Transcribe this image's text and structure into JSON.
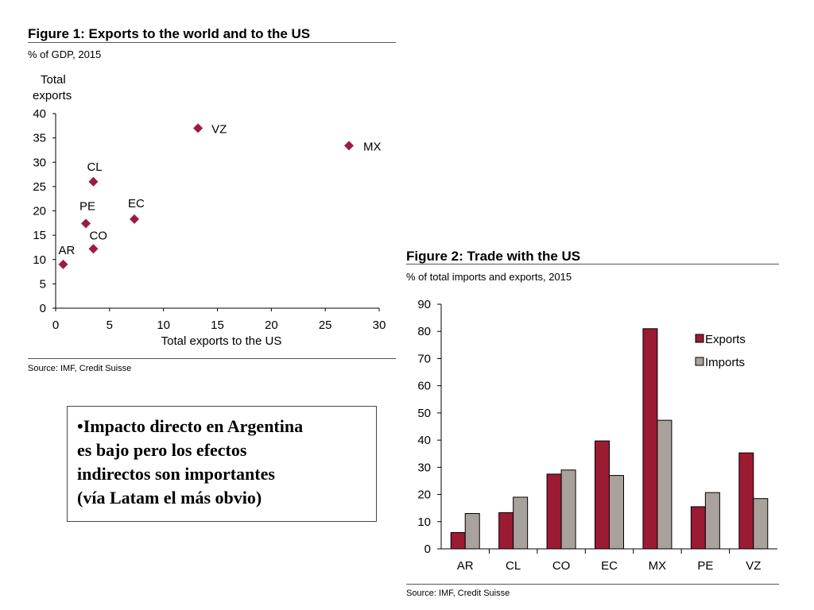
{
  "chart_data": [
    {
      "type": "scatter",
      "title": "Figure 1: Exports to the world and to the US",
      "subtitle": "% of GDP, 2015",
      "ylabel_lines": [
        "Total",
        "exports"
      ],
      "xlabel": "Total exports to the US",
      "xlim": [
        0,
        30
      ],
      "ylim": [
        0,
        40
      ],
      "xticks": [
        0,
        5,
        10,
        15,
        20,
        25,
        30
      ],
      "yticks": [
        0,
        5,
        10,
        15,
        20,
        25,
        30,
        35,
        40
      ],
      "marker_color": "#9b1b44",
      "points": [
        {
          "label": "AR",
          "x": 0.7,
          "y": 9
        },
        {
          "label": "CL",
          "x": 3.5,
          "y": 26
        },
        {
          "label": "CO",
          "x": 3.5,
          "y": 12.2
        },
        {
          "label": "PE",
          "x": 2.8,
          "y": 17.4
        },
        {
          "label": "EC",
          "x": 7.3,
          "y": 18.3
        },
        {
          "label": "VZ",
          "x": 13.2,
          "y": 37
        },
        {
          "label": "MX",
          "x": 27.2,
          "y": 33.4
        }
      ],
      "source": "Source: IMF, Credit Suisse"
    },
    {
      "type": "bar",
      "title": "Figure 2: Trade with the US",
      "subtitle": "% of total imports and exports, 2015",
      "categories": [
        "AR",
        "CL",
        "CO",
        "EC",
        "MX",
        "PE",
        "VZ"
      ],
      "series": [
        {
          "name": "Exports",
          "color": "#9b1b33",
          "values": [
            6,
            13.3,
            27.5,
            39.7,
            81,
            15.5,
            35.3
          ]
        },
        {
          "name": "Imports",
          "color": "#a9a19b",
          "values": [
            13,
            19,
            29,
            27,
            47.3,
            20.7,
            18.5
          ]
        }
      ],
      "ylim": [
        0,
        90
      ],
      "yticks": [
        0,
        10,
        20,
        30,
        40,
        50,
        60,
        70,
        80,
        90
      ],
      "legend_position": "top-right",
      "source": "Source: IMF, Credit Suisse"
    }
  ],
  "textbox": {
    "lines": [
      "•Impacto directo en Argentina",
      "es bajo pero los efectos",
      "indirectos son importantes",
      "(vía Latam el más obvio)"
    ]
  }
}
